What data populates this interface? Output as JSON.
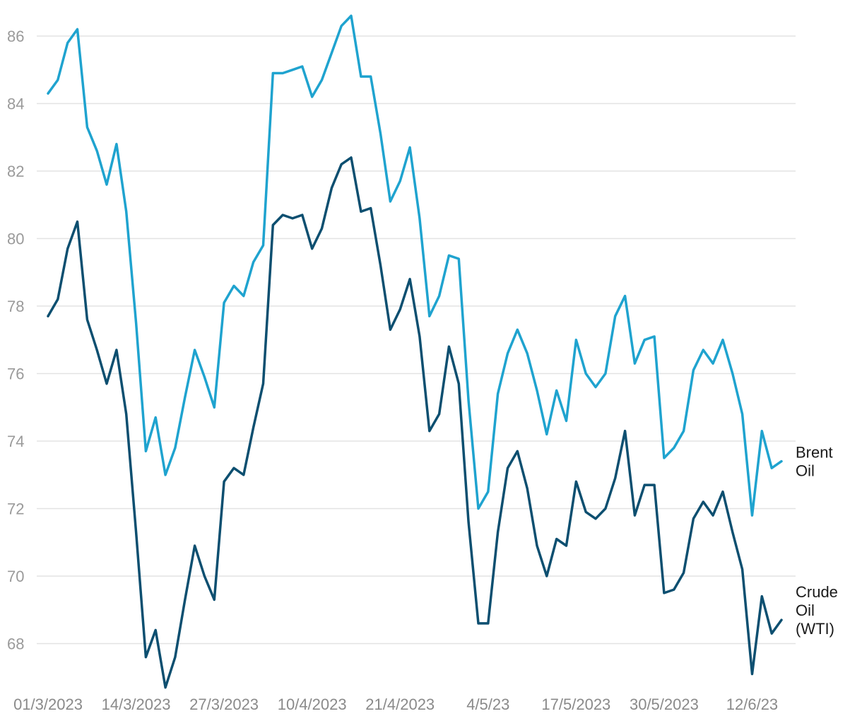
{
  "chart_data": {
    "type": "line",
    "title": "",
    "xlabel": "",
    "ylabel": "",
    "ylim": [
      67,
      86.7
    ],
    "yticks": [
      68,
      70,
      72,
      74,
      76,
      78,
      80,
      82,
      84,
      86
    ],
    "grid": true,
    "x_index_range": [
      0,
      77
    ],
    "xticks": [
      {
        "index": 0,
        "label": "01/3/2023"
      },
      {
        "index": 9,
        "label": "14/3/2023"
      },
      {
        "index": 18,
        "label": "27/3/2023"
      },
      {
        "index": 27,
        "label": "10/4/2023"
      },
      {
        "index": 36,
        "label": "21/4/2023"
      },
      {
        "index": 45,
        "label": "4/5/23"
      },
      {
        "index": 54,
        "label": "17/5/2023"
      },
      {
        "index": 63,
        "label": "30/5/2023"
      },
      {
        "index": 72,
        "label": "12/6/23"
      }
    ],
    "series": [
      {
        "name": "Brent Oil",
        "label_lines": [
          "Brent",
          "Oil"
        ],
        "color": "#1fa3cf",
        "values": [
          84.3,
          84.7,
          85.8,
          86.2,
          83.3,
          82.6,
          81.6,
          82.8,
          80.8,
          77.5,
          73.7,
          74.7,
          73.0,
          73.8,
          75.3,
          76.7,
          75.9,
          75.0,
          78.1,
          78.6,
          78.3,
          79.3,
          79.8,
          84.9,
          84.9,
          85.0,
          85.1,
          84.2,
          84.7,
          85.5,
          86.3,
          86.6,
          84.8,
          84.8,
          83.1,
          81.1,
          81.7,
          82.7,
          80.6,
          77.7,
          78.3,
          79.5,
          79.4,
          75.2,
          72.0,
          72.5,
          75.4,
          76.6,
          77.3,
          76.6,
          75.5,
          74.2,
          75.5,
          74.6,
          77.0,
          76.0,
          75.6,
          76.0,
          77.7,
          78.3,
          76.3,
          77.0,
          77.1,
          73.5,
          73.8,
          74.3,
          76.1,
          76.7,
          76.3,
          77.0,
          76.0,
          74.8,
          71.8,
          74.3,
          73.2,
          73.4
        ]
      },
      {
        "name": "Crude Oil (WTI)",
        "label_lines": [
          "Crude",
          "Oil",
          "(WTI)"
        ],
        "color": "#0d4f70",
        "values": [
          77.7,
          78.2,
          79.7,
          80.5,
          77.6,
          76.7,
          75.7,
          76.7,
          74.8,
          71.3,
          67.6,
          68.4,
          66.7,
          67.6,
          69.3,
          70.9,
          70.0,
          69.3,
          72.8,
          73.2,
          73.0,
          74.4,
          75.7,
          80.4,
          80.7,
          80.6,
          80.7,
          79.7,
          80.3,
          81.5,
          82.2,
          82.4,
          80.8,
          80.9,
          79.2,
          77.3,
          77.9,
          78.8,
          77.1,
          74.3,
          74.8,
          76.8,
          75.7,
          71.6,
          68.6,
          68.6,
          71.3,
          73.2,
          73.7,
          72.6,
          70.9,
          70.0,
          71.1,
          70.9,
          72.8,
          71.9,
          71.7,
          72.0,
          72.9,
          74.3,
          71.8,
          72.7,
          72.7,
          69.5,
          69.6,
          70.1,
          71.7,
          72.2,
          71.8,
          72.5,
          71.3,
          70.2,
          67.1,
          69.4,
          68.3,
          68.7
        ]
      }
    ]
  }
}
